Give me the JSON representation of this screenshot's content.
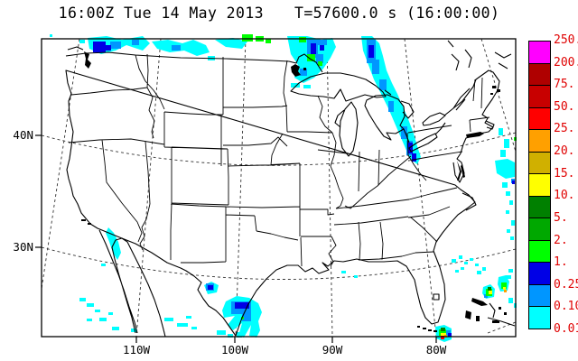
{
  "header": {
    "datetime": "16:00Z Tue 14 May 2013",
    "time_label": "T=57600.0 s (16:00:00)"
  },
  "axes": {
    "lat": [
      {
        "text": "40N"
      },
      {
        "text": "30N"
      }
    ],
    "lon": [
      {
        "text": "110W"
      },
      {
        "text": "100W"
      },
      {
        "text": "90W"
      },
      {
        "text": "80W"
      }
    ]
  },
  "colorbar": {
    "labels": [
      "250.",
      "200.",
      "75.",
      "50.",
      "25.",
      "20.",
      "15.",
      "10.",
      "5.",
      "2.",
      "1.",
      "0.25",
      "0.10",
      "0.01"
    ],
    "box_colors": [
      "#FF00FF",
      "#AF0000",
      "#C80000",
      "#FF0000",
      "#FFA000",
      "#D0B000",
      "#FFFF00",
      "#008000",
      "#00A800",
      "#00FF00",
      "#0000E6",
      "#0096FF",
      "#00FFFF"
    ],
    "label_color": "#E00000"
  },
  "palette": {
    "cyan": "#00FFFF",
    "light_blue": "#0096FF",
    "blue": "#0000E6",
    "bright_green": "#00FF00",
    "green": "#00A800",
    "dark_green": "#008000",
    "yellow": "#FFFF00",
    "orange": "#FFA000",
    "red": "#FF0000",
    "magenta": "#FF00FF",
    "dark_red": "#AF0000",
    "gold": "#D0B000"
  },
  "map": {
    "region": "Continental United States",
    "gridlines": {
      "parallels": [
        "30N",
        "40N"
      ],
      "meridians": [
        "110W",
        "100W",
        "90W",
        "80W"
      ]
    },
    "precip_regions": [
      {
        "name": "pacific-northwest-border-band",
        "colors": [
          "cyan",
          "light_blue",
          "blue"
        ]
      },
      {
        "name": "northern-plains-border-band",
        "colors": [
          "cyan",
          "light_blue",
          "bright_green"
        ]
      },
      {
        "name": "minnesota-lake-superior-blob",
        "colors": [
          "cyan",
          "light_blue",
          "blue",
          "bright_green"
        ]
      },
      {
        "name": "great-lakes-to-ohio-band",
        "colors": [
          "cyan",
          "light_blue",
          "blue"
        ]
      },
      {
        "name": "new-england-coast-streaks",
        "colors": [
          "cyan",
          "light_blue",
          "blue",
          "bright_green"
        ]
      },
      {
        "name": "bahamas-atlantic-cells",
        "colors": [
          "cyan",
          "bright_green",
          "yellow",
          "orange",
          "light_blue"
        ]
      },
      {
        "name": "south-florida-cell",
        "colors": [
          "cyan",
          "bright_green",
          "yellow",
          "red",
          "orange",
          "light_blue"
        ]
      },
      {
        "name": "texas-rio-grande-cells",
        "colors": [
          "cyan",
          "light_blue",
          "blue",
          "bright_green"
        ]
      },
      {
        "name": "baja-pacific-streaks",
        "colors": [
          "cyan"
        ]
      }
    ]
  }
}
